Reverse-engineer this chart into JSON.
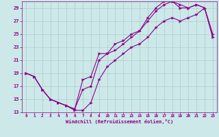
{
  "xlabel": "Windchill (Refroidissement éolien,°C)",
  "bg_color": "#cce8e8",
  "grid_color": "#aacccc",
  "line_color": "#880088",
  "xlim": [
    -0.5,
    23.5
  ],
  "ylim": [
    13,
    30
  ],
  "xticks": [
    0,
    1,
    2,
    3,
    4,
    5,
    6,
    7,
    8,
    9,
    10,
    11,
    12,
    13,
    14,
    15,
    16,
    17,
    18,
    19,
    20,
    21,
    22,
    23
  ],
  "yticks": [
    13,
    15,
    17,
    19,
    21,
    23,
    25,
    27,
    29
  ],
  "line1_x": [
    0,
    1,
    2,
    3,
    4,
    5,
    6,
    7,
    8,
    9,
    10,
    11,
    12,
    13,
    14,
    15,
    16,
    17,
    18,
    19,
    20,
    21,
    22,
    23
  ],
  "line1_y": [
    19,
    18.5,
    16.5,
    15,
    14.5,
    14,
    13.5,
    18,
    18.5,
    22,
    22,
    23.5,
    24,
    25,
    25.5,
    27,
    28.5,
    29.5,
    30,
    29,
    29,
    29.5,
    29,
    24.5
  ],
  "line2_x": [
    0,
    1,
    2,
    3,
    4,
    5,
    6,
    7,
    8,
    9,
    10,
    11,
    12,
    13,
    14,
    15,
    16,
    17,
    18,
    19,
    20,
    21,
    22,
    23
  ],
  "line2_y": [
    19,
    18.5,
    16.5,
    15,
    14.5,
    14,
    13.5,
    16.5,
    17,
    21,
    22,
    22.5,
    23.5,
    24.5,
    25.5,
    27.5,
    29,
    30,
    30,
    29.5,
    29,
    29.5,
    29,
    25
  ],
  "line3_x": [
    0,
    1,
    2,
    3,
    4,
    5,
    6,
    7,
    8,
    9,
    10,
    11,
    12,
    13,
    14,
    15,
    16,
    17,
    18,
    19,
    20,
    21,
    22,
    23
  ],
  "line3_y": [
    19,
    18.5,
    16.5,
    15,
    14.5,
    14,
    13.3,
    13.3,
    14.5,
    18,
    20,
    21,
    22,
    23,
    23.5,
    24.5,
    26,
    27,
    27.5,
    27,
    27.5,
    28,
    29,
    24.5
  ],
  "marker_size": 2.5,
  "linewidth": 0.8
}
